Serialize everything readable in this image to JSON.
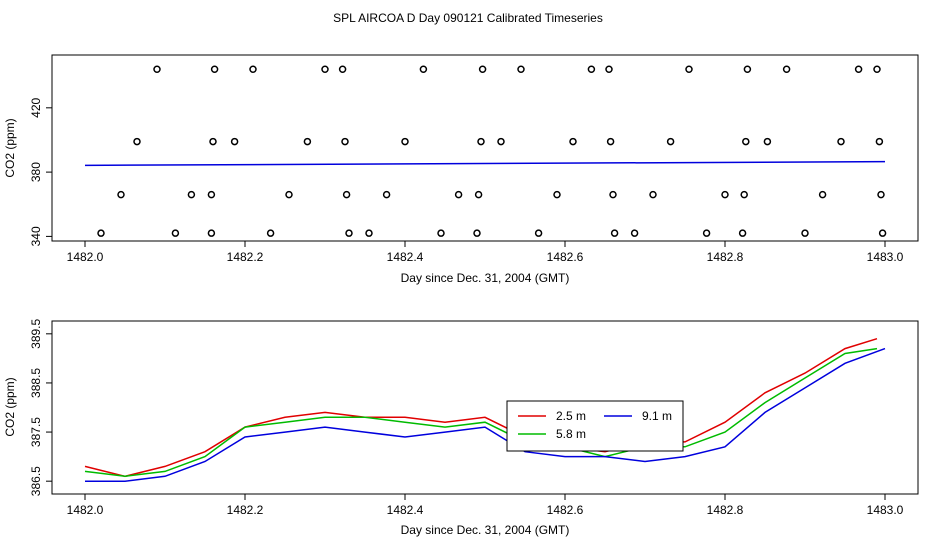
{
  "title": "SPL AIRCOA D  Day 090121  Calibrated Timeseries",
  "colors": {
    "red": "#e00000",
    "green": "#00bb00",
    "blue": "#0000dd",
    "magenta": "#cc0077",
    "axis": "#000000"
  },
  "chart_data": [
    {
      "type": "scatter",
      "xlabel": "Day since Dec. 31, 2004 (GMT)",
      "ylabel": "CO2 (ppm)",
      "xlim": [
        1482.0,
        1483.0
      ],
      "ylim": [
        339,
        451
      ],
      "xticks": [
        "1482.0",
        "1482.2",
        "1482.4",
        "1482.6",
        "1482.8",
        "1483.0"
      ],
      "yticks": [
        "340",
        "380",
        "420"
      ],
      "grid": false,
      "points": [
        [
          1482.02,
          342
        ],
        [
          1482.045,
          366
        ],
        [
          1482.065,
          399
        ],
        [
          1482.09,
          444
        ],
        [
          1482.113,
          342
        ],
        [
          1482.133,
          366
        ],
        [
          1482.158,
          342
        ],
        [
          1482.158,
          366
        ],
        [
          1482.16,
          399
        ],
        [
          1482.162,
          444
        ],
        [
          1482.187,
          399
        ],
        [
          1482.21,
          444
        ],
        [
          1482.232,
          342
        ],
        [
          1482.255,
          366
        ],
        [
          1482.278,
          399
        ],
        [
          1482.3,
          444
        ],
        [
          1482.322,
          444
        ],
        [
          1482.325,
          399
        ],
        [
          1482.327,
          366
        ],
        [
          1482.33,
          342
        ],
        [
          1482.355,
          342
        ],
        [
          1482.377,
          366
        ],
        [
          1482.4,
          399
        ],
        [
          1482.423,
          444
        ],
        [
          1482.445,
          342
        ],
        [
          1482.467,
          366
        ],
        [
          1482.49,
          342
        ],
        [
          1482.492,
          366
        ],
        [
          1482.495,
          399
        ],
        [
          1482.497,
          444
        ],
        [
          1482.52,
          399
        ],
        [
          1482.545,
          444
        ],
        [
          1482.567,
          342
        ],
        [
          1482.59,
          366
        ],
        [
          1482.61,
          399
        ],
        [
          1482.633,
          444
        ],
        [
          1482.655,
          444
        ],
        [
          1482.657,
          399
        ],
        [
          1482.66,
          366
        ],
        [
          1482.662,
          342
        ],
        [
          1482.687,
          342
        ],
        [
          1482.71,
          366
        ],
        [
          1482.732,
          399
        ],
        [
          1482.755,
          444
        ],
        [
          1482.777,
          342
        ],
        [
          1482.8,
          366
        ],
        [
          1482.822,
          342
        ],
        [
          1482.824,
          366
        ],
        [
          1482.826,
          399
        ],
        [
          1482.828,
          444
        ],
        [
          1482.853,
          399
        ],
        [
          1482.877,
          444
        ],
        [
          1482.9,
          342
        ],
        [
          1482.922,
          366
        ],
        [
          1482.945,
          399
        ],
        [
          1482.967,
          444
        ],
        [
          1482.99,
          444
        ],
        [
          1482.993,
          399
        ],
        [
          1482.995,
          366
        ],
        [
          1482.997,
          342
        ]
      ],
      "lines": [
        {
          "color": "blue",
          "start": [
            1482.0,
            384.2
          ],
          "end": [
            1483.0,
            386.5
          ]
        }
      ]
    },
    {
      "type": "line",
      "xlabel": "Day since Dec. 31, 2004 (GMT)",
      "ylabel": "CO2 (ppm)",
      "xlim": [
        1482.0,
        1483.0
      ],
      "ylim": [
        386.3,
        389.7
      ],
      "xticks": [
        "1482.0",
        "1482.2",
        "1482.4",
        "1482.6",
        "1482.8",
        "1483.0"
      ],
      "yticks": [
        "386.5",
        "387.5",
        "388.5",
        "389.5"
      ],
      "grid": false,
      "legend_position": "center-right",
      "series": [
        {
          "name": "2.5 m",
          "color": "red",
          "x": [
            1482.0,
            1482.05,
            1482.1,
            1482.15,
            1482.2,
            1482.25,
            1482.3,
            1482.35,
            1482.4,
            1482.45,
            1482.5,
            1482.55,
            1482.6,
            1482.65,
            1482.7,
            1482.75,
            1482.8,
            1482.85,
            1482.9,
            1482.95,
            1482.99
          ],
          "y": [
            386.8,
            386.6,
            386.8,
            387.1,
            387.6,
            387.8,
            387.9,
            387.8,
            387.8,
            387.7,
            387.8,
            387.4,
            387.2,
            387.1,
            387.3,
            387.3,
            387.7,
            388.3,
            388.7,
            389.2,
            389.4
          ]
        },
        {
          "name": "5.8 m",
          "color": "green",
          "x": [
            1482.0,
            1482.05,
            1482.1,
            1482.15,
            1482.2,
            1482.25,
            1482.3,
            1482.35,
            1482.4,
            1482.45,
            1482.5,
            1482.55,
            1482.6,
            1482.65,
            1482.7,
            1482.75,
            1482.8,
            1482.85,
            1482.9,
            1482.95,
            1482.99
          ],
          "y": [
            386.7,
            386.6,
            386.7,
            387.0,
            387.6,
            387.7,
            387.8,
            387.8,
            387.7,
            387.6,
            387.7,
            387.3,
            387.2,
            387.0,
            387.2,
            387.2,
            387.5,
            388.1,
            388.6,
            389.1,
            389.2
          ]
        },
        {
          "name": "9.1 m",
          "color": "blue",
          "x": [
            1482.0,
            1482.05,
            1482.1,
            1482.15,
            1482.2,
            1482.25,
            1482.3,
            1482.35,
            1482.4,
            1482.45,
            1482.5,
            1482.55,
            1482.6,
            1482.65,
            1482.7,
            1482.75,
            1482.8,
            1482.85,
            1482.9,
            1482.95,
            1483.0
          ],
          "y": [
            386.5,
            386.5,
            386.6,
            386.9,
            387.4,
            387.5,
            387.6,
            387.5,
            387.4,
            387.5,
            387.6,
            387.1,
            387.0,
            387.0,
            386.9,
            387.0,
            387.2,
            387.9,
            388.4,
            388.9,
            389.2
          ]
        }
      ]
    }
  ]
}
